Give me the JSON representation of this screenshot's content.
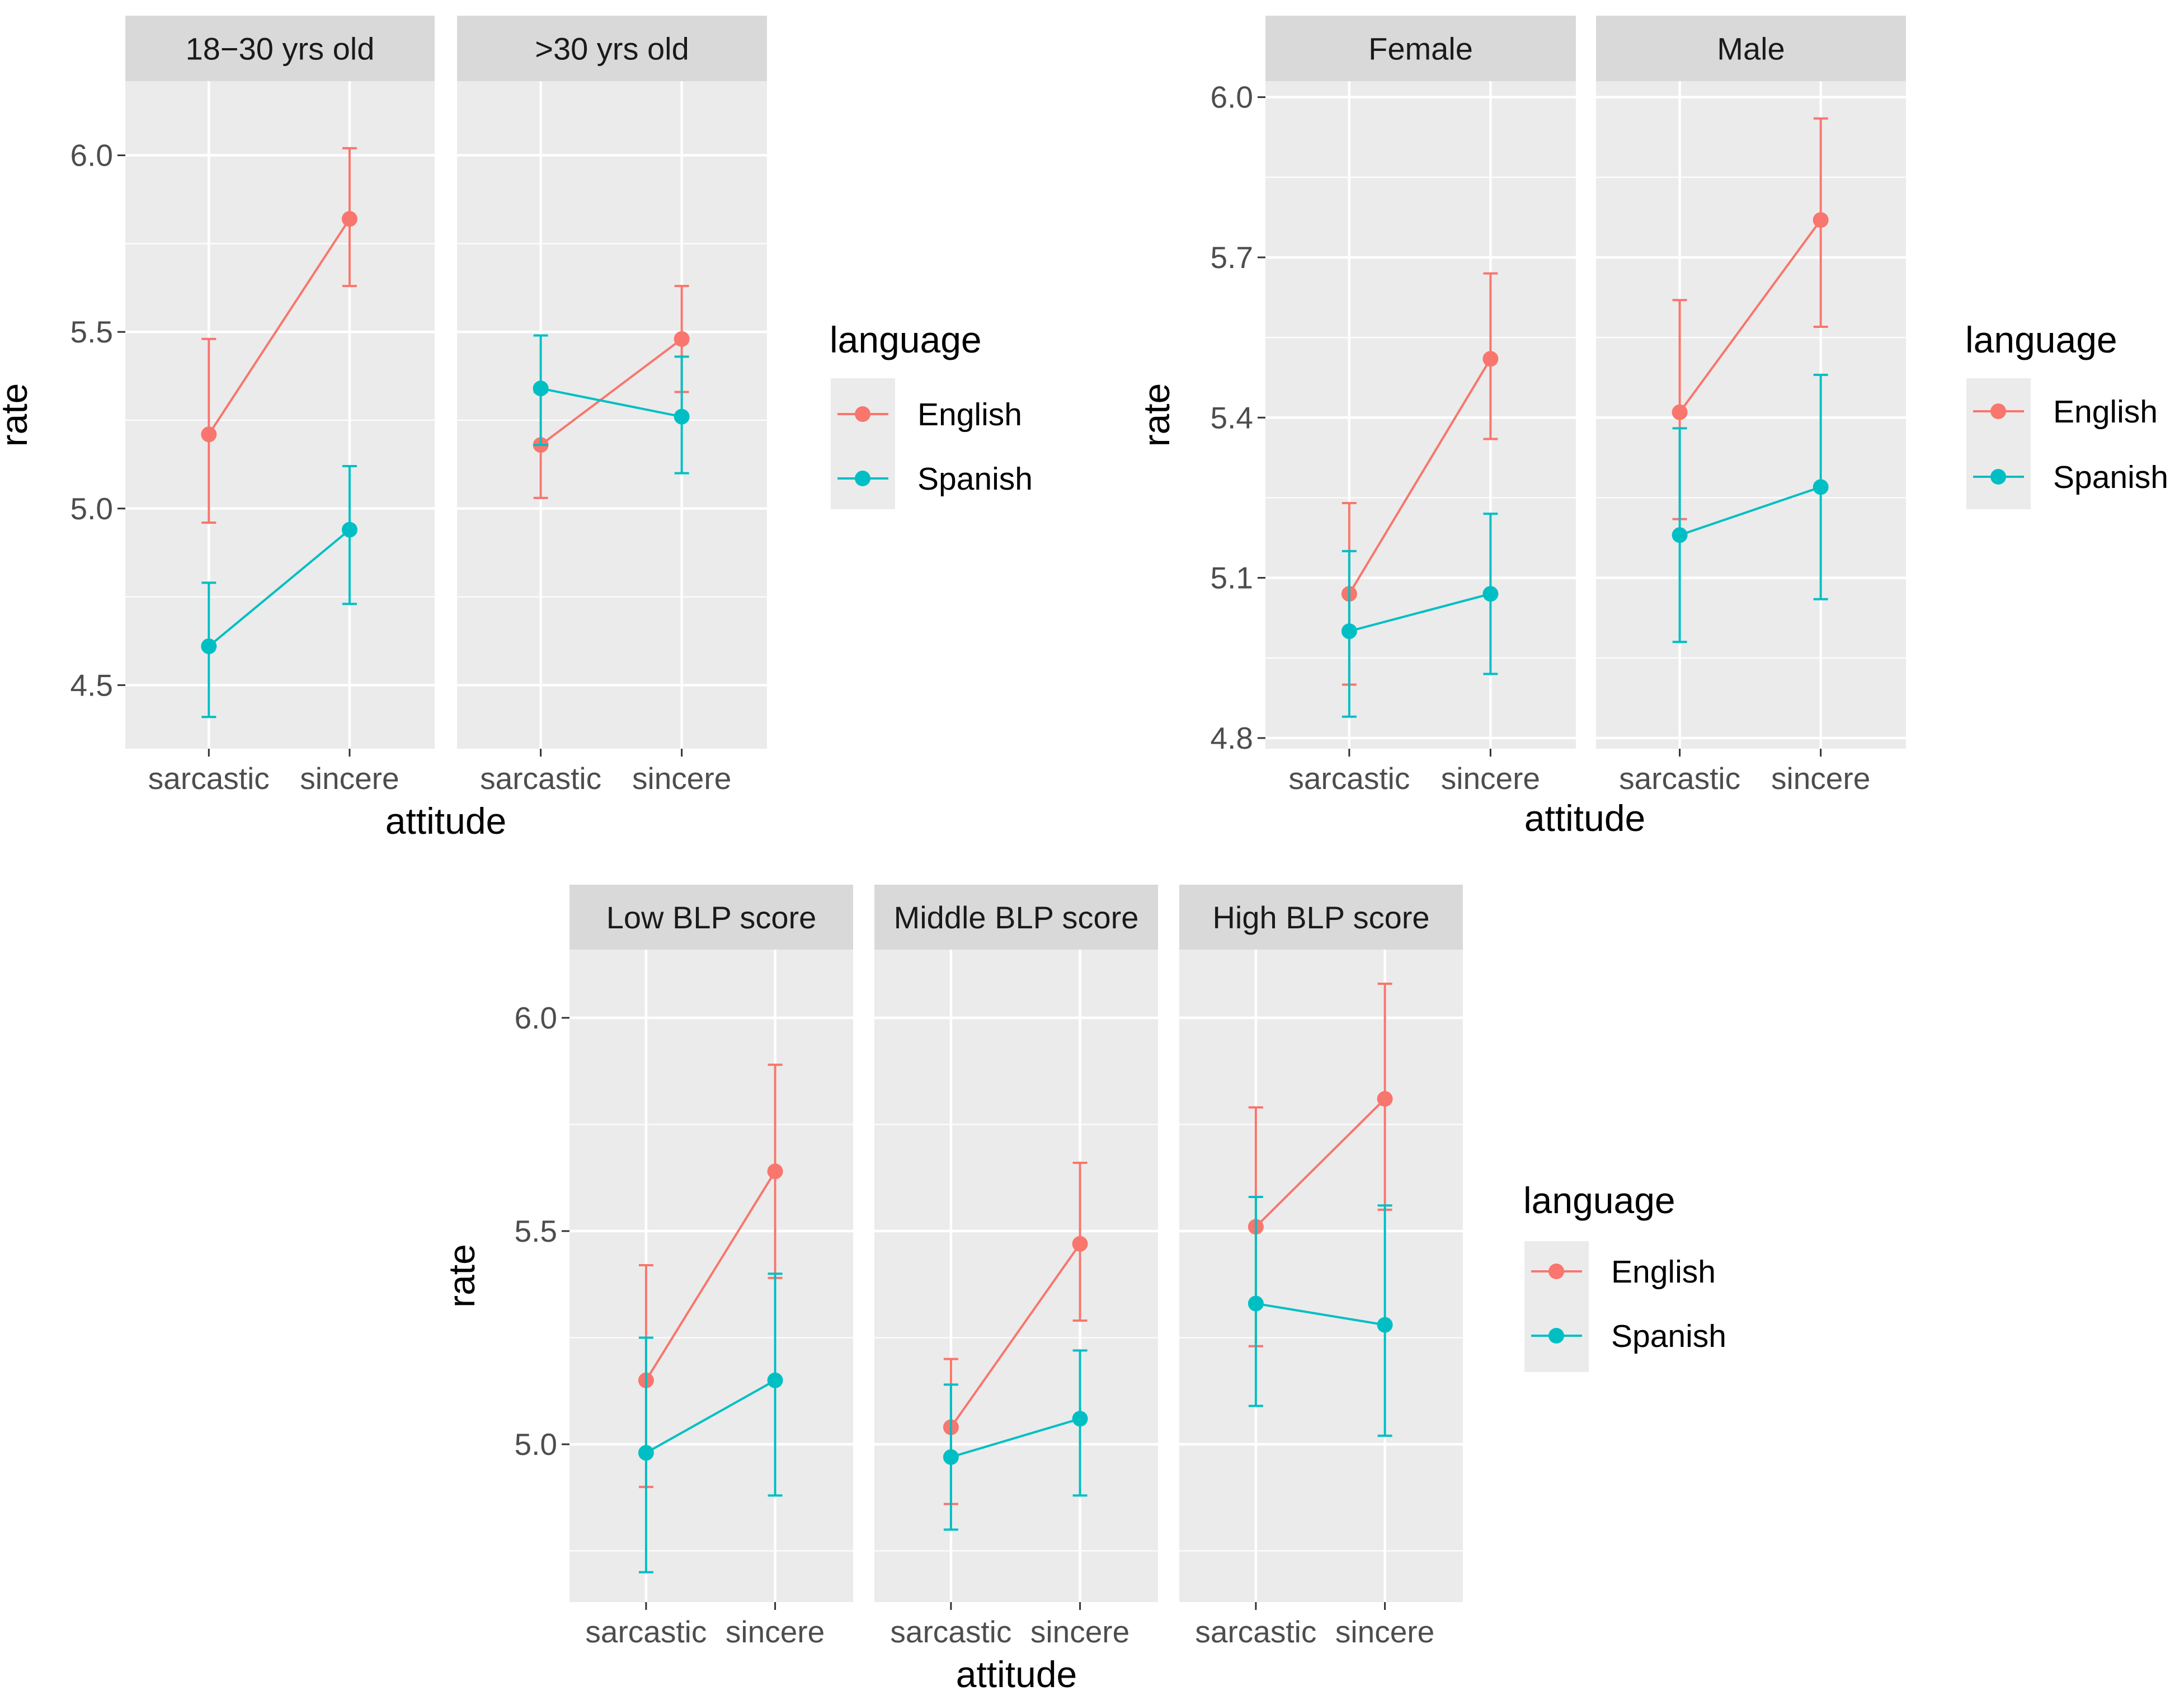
{
  "colors": {
    "English": "#F8766D",
    "Spanish": "#00BFC4",
    "panel_bg": "#EBEBEB",
    "strip_bg": "#D9D9D9",
    "grid": "#FFFFFF"
  },
  "chart_data": [
    {
      "type": "line",
      "title": "",
      "xlabel": "attitude",
      "ylabel": "rate",
      "categories": [
        "sarcastic",
        "sincere"
      ],
      "ylim": [
        4.32,
        6.21
      ],
      "yticks": [
        "4.5",
        "5.0",
        "5.5",
        "6.0"
      ],
      "legend": {
        "title": "language",
        "entries": [
          "English",
          "Spanish"
        ],
        "position": "right"
      },
      "facets": [
        {
          "label": "18−30 yrs old",
          "series": [
            {
              "name": "English",
              "values": [
                5.21,
                5.82
              ],
              "lower": [
                4.96,
                5.63
              ],
              "upper": [
                5.48,
                6.02
              ]
            },
            {
              "name": "Spanish",
              "values": [
                4.61,
                4.94
              ],
              "lower": [
                4.41,
                4.73
              ],
              "upper": [
                4.79,
                5.12
              ]
            }
          ]
        },
        {
          "label": ">30 yrs old",
          "series": [
            {
              "name": "English",
              "values": [
                5.18,
                5.48
              ],
              "lower": [
                5.03,
                5.33
              ],
              "upper": [
                5.33,
                5.63
              ]
            },
            {
              "name": "Spanish",
              "values": [
                5.34,
                5.26
              ],
              "lower": [
                5.18,
                5.1
              ],
              "upper": [
                5.49,
                5.43
              ]
            }
          ]
        }
      ]
    },
    {
      "type": "line",
      "title": "",
      "xlabel": "attitude",
      "ylabel": "rate",
      "categories": [
        "sarcastic",
        "sincere"
      ],
      "ylim": [
        4.78,
        6.03
      ],
      "yticks": [
        "4.8",
        "5.1",
        "5.4",
        "5.7",
        "6.0"
      ],
      "legend": {
        "title": "language",
        "entries": [
          "English",
          "Spanish"
        ],
        "position": "right"
      },
      "facets": [
        {
          "label": "Female",
          "series": [
            {
              "name": "English",
              "values": [
                5.07,
                5.51
              ],
              "lower": [
                4.9,
                5.36
              ],
              "upper": [
                5.24,
                5.67
              ]
            },
            {
              "name": "Spanish",
              "values": [
                5.0,
                5.07
              ],
              "lower": [
                4.84,
                4.92
              ],
              "upper": [
                5.15,
                5.22
              ]
            }
          ]
        },
        {
          "label": "Male",
          "series": [
            {
              "name": "English",
              "values": [
                5.41,
                5.77
              ],
              "lower": [
                5.21,
                5.57
              ],
              "upper": [
                5.62,
                5.96
              ]
            },
            {
              "name": "Spanish",
              "values": [
                5.18,
                5.27
              ],
              "lower": [
                4.98,
                5.06
              ],
              "upper": [
                5.38,
                5.48
              ]
            }
          ]
        }
      ]
    },
    {
      "type": "line",
      "title": "",
      "xlabel": "attitude",
      "ylabel": "rate",
      "categories": [
        "sarcastic",
        "sincere"
      ],
      "ylim": [
        4.63,
        6.16
      ],
      "yticks": [
        "5.0",
        "5.5",
        "6.0"
      ],
      "legend": {
        "title": "language",
        "entries": [
          "English",
          "Spanish"
        ],
        "position": "right"
      },
      "facets": [
        {
          "label": "Low BLP score",
          "series": [
            {
              "name": "English",
              "values": [
                5.15,
                5.64
              ],
              "lower": [
                4.9,
                5.39
              ],
              "upper": [
                5.42,
                5.89
              ]
            },
            {
              "name": "Spanish",
              "values": [
                4.98,
                5.15
              ],
              "lower": [
                4.7,
                4.88
              ],
              "upper": [
                5.25,
                5.4
              ]
            }
          ]
        },
        {
          "label": "Middle BLP score",
          "series": [
            {
              "name": "English",
              "values": [
                5.04,
                5.47
              ],
              "lower": [
                4.86,
                5.29
              ],
              "upper": [
                5.2,
                5.66
              ]
            },
            {
              "name": "Spanish",
              "values": [
                4.97,
                5.06
              ],
              "lower": [
                4.8,
                4.88
              ],
              "upper": [
                5.14,
                5.22
              ]
            }
          ]
        },
        {
          "label": "High BLP score",
          "series": [
            {
              "name": "English",
              "values": [
                5.51,
                5.81
              ],
              "lower": [
                5.23,
                5.55
              ],
              "upper": [
                5.79,
                6.08
              ]
            },
            {
              "name": "Spanish",
              "values": [
                5.33,
                5.28
              ],
              "lower": [
                5.09,
                5.02
              ],
              "upper": [
                5.58,
                5.56
              ]
            }
          ]
        }
      ]
    }
  ]
}
